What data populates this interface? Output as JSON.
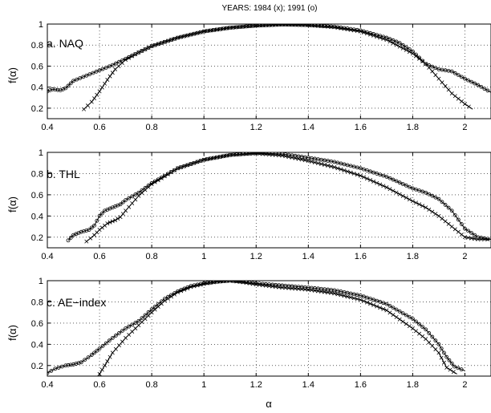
{
  "figure": {
    "title": "YEARS: 1984 (x); 1991 (o)",
    "xlabel": "α"
  },
  "chart_data": [
    {
      "type": "line",
      "panel_label": "a. NAQ",
      "ylabel": "f(α)",
      "xlim": [
        0.4,
        2.1
      ],
      "ylim": [
        0.1,
        1.0
      ],
      "x_ticks": [
        0.4,
        0.6,
        0.8,
        1,
        1.2,
        1.4,
        1.6,
        1.8,
        2
      ],
      "y_ticks": [
        0.2,
        0.4,
        0.6,
        0.8,
        1
      ],
      "grid": true,
      "series": [
        {
          "marker": "x",
          "points": [
            [
              0.54,
              0.19
            ],
            [
              0.57,
              0.26
            ],
            [
              0.6,
              0.36
            ],
            [
              0.63,
              0.47
            ],
            [
              0.66,
              0.57
            ],
            [
              0.7,
              0.66
            ],
            [
              0.75,
              0.73
            ],
            [
              0.8,
              0.79
            ],
            [
              0.9,
              0.87
            ],
            [
              1.0,
              0.93
            ],
            [
              1.1,
              0.965
            ],
            [
              1.2,
              0.985
            ],
            [
              1.3,
              0.995
            ],
            [
              1.4,
              0.99
            ],
            [
              1.5,
              0.97
            ],
            [
              1.6,
              0.93
            ],
            [
              1.7,
              0.85
            ],
            [
              1.8,
              0.72
            ],
            [
              1.85,
              0.62
            ],
            [
              1.9,
              0.48
            ],
            [
              1.95,
              0.34
            ],
            [
              2.0,
              0.24
            ],
            [
              2.03,
              0.19
            ]
          ]
        },
        {
          "marker": "o",
          "points": [
            [
              0.4,
              0.36
            ],
            [
              0.42,
              0.38
            ],
            [
              0.45,
              0.37
            ],
            [
              0.47,
              0.39
            ],
            [
              0.5,
              0.46
            ],
            [
              0.55,
              0.51
            ],
            [
              0.6,
              0.56
            ],
            [
              0.65,
              0.61
            ],
            [
              0.7,
              0.67
            ],
            [
              0.75,
              0.73
            ],
            [
              0.8,
              0.79
            ],
            [
              0.9,
              0.87
            ],
            [
              1.0,
              0.93
            ],
            [
              1.1,
              0.965
            ],
            [
              1.2,
              0.985
            ],
            [
              1.3,
              0.995
            ],
            [
              1.4,
              0.99
            ],
            [
              1.5,
              0.975
            ],
            [
              1.6,
              0.94
            ],
            [
              1.7,
              0.87
            ],
            [
              1.75,
              0.82
            ],
            [
              1.8,
              0.74
            ],
            [
              1.85,
              0.62
            ],
            [
              1.9,
              0.57
            ],
            [
              1.95,
              0.55
            ],
            [
              2.0,
              0.48
            ],
            [
              2.05,
              0.42
            ],
            [
              2.1,
              0.35
            ]
          ]
        }
      ]
    },
    {
      "type": "line",
      "panel_label": "b. THL",
      "ylabel": "f(α)",
      "xlim": [
        0.4,
        2.1
      ],
      "ylim": [
        0.1,
        1.0
      ],
      "x_ticks": [
        0.4,
        0.6,
        0.8,
        1,
        1.2,
        1.4,
        1.6,
        1.8,
        2
      ],
      "y_ticks": [
        0.2,
        0.4,
        0.6,
        0.8,
        1
      ],
      "grid": true,
      "series": [
        {
          "marker": "x",
          "points": [
            [
              0.55,
              0.16
            ],
            [
              0.58,
              0.22
            ],
            [
              0.6,
              0.27
            ],
            [
              0.63,
              0.33
            ],
            [
              0.66,
              0.36
            ],
            [
              0.68,
              0.39
            ],
            [
              0.7,
              0.45
            ],
            [
              0.75,
              0.59
            ],
            [
              0.8,
              0.7
            ],
            [
              0.9,
              0.85
            ],
            [
              1.0,
              0.93
            ],
            [
              1.1,
              0.975
            ],
            [
              1.2,
              0.99
            ],
            [
              1.3,
              0.97
            ],
            [
              1.4,
              0.92
            ],
            [
              1.5,
              0.86
            ],
            [
              1.6,
              0.78
            ],
            [
              1.7,
              0.67
            ],
            [
              1.8,
              0.54
            ],
            [
              1.85,
              0.48
            ],
            [
              1.9,
              0.4
            ],
            [
              1.95,
              0.3
            ],
            [
              2.0,
              0.2
            ],
            [
              2.05,
              0.18
            ],
            [
              2.1,
              0.18
            ]
          ]
        },
        {
          "marker": "o",
          "points": [
            [
              0.48,
              0.17
            ],
            [
              0.5,
              0.22
            ],
            [
              0.53,
              0.25
            ],
            [
              0.56,
              0.27
            ],
            [
              0.58,
              0.31
            ],
            [
              0.6,
              0.4
            ],
            [
              0.62,
              0.45
            ],
            [
              0.65,
              0.48
            ],
            [
              0.68,
              0.51
            ],
            [
              0.7,
              0.55
            ],
            [
              0.75,
              0.62
            ],
            [
              0.8,
              0.71
            ],
            [
              0.9,
              0.85
            ],
            [
              1.0,
              0.93
            ],
            [
              1.1,
              0.975
            ],
            [
              1.2,
              0.995
            ],
            [
              1.3,
              0.985
            ],
            [
              1.4,
              0.95
            ],
            [
              1.5,
              0.91
            ],
            [
              1.6,
              0.85
            ],
            [
              1.7,
              0.77
            ],
            [
              1.8,
              0.66
            ],
            [
              1.85,
              0.62
            ],
            [
              1.9,
              0.56
            ],
            [
              1.95,
              0.45
            ],
            [
              2.0,
              0.28
            ],
            [
              2.05,
              0.2
            ],
            [
              2.1,
              0.18
            ]
          ]
        }
      ]
    },
    {
      "type": "line",
      "panel_label": "c. AE−index",
      "ylabel": "f(α)",
      "xlim": [
        0.4,
        2.1
      ],
      "ylim": [
        0.1,
        1.0
      ],
      "x_ticks": [
        0.4,
        0.6,
        0.8,
        1,
        1.2,
        1.4,
        1.6,
        1.8,
        2
      ],
      "y_ticks": [
        0.2,
        0.4,
        0.6,
        0.8,
        1
      ],
      "grid": true,
      "series": [
        {
          "marker": "x",
          "points": [
            [
              0.6,
              0.12
            ],
            [
              0.62,
              0.2
            ],
            [
              0.65,
              0.32
            ],
            [
              0.7,
              0.46
            ],
            [
              0.75,
              0.58
            ],
            [
              0.8,
              0.7
            ],
            [
              0.85,
              0.81
            ],
            [
              0.9,
              0.89
            ],
            [
              0.95,
              0.94
            ],
            [
              1.0,
              0.97
            ],
            [
              1.05,
              0.99
            ],
            [
              1.1,
              1.0
            ],
            [
              1.15,
              0.985
            ],
            [
              1.2,
              0.965
            ],
            [
              1.3,
              0.935
            ],
            [
              1.4,
              0.915
            ],
            [
              1.5,
              0.88
            ],
            [
              1.6,
              0.82
            ],
            [
              1.7,
              0.72
            ],
            [
              1.8,
              0.55
            ],
            [
              1.85,
              0.45
            ],
            [
              1.9,
              0.32
            ],
            [
              1.93,
              0.18
            ],
            [
              1.97,
              0.12
            ]
          ]
        },
        {
          "marker": "o",
          "points": [
            [
              0.4,
              0.13
            ],
            [
              0.43,
              0.17
            ],
            [
              0.47,
              0.2
            ],
            [
              0.5,
              0.21
            ],
            [
              0.53,
              0.23
            ],
            [
              0.57,
              0.3
            ],
            [
              0.6,
              0.36
            ],
            [
              0.65,
              0.46
            ],
            [
              0.7,
              0.55
            ],
            [
              0.75,
              0.62
            ],
            [
              0.8,
              0.73
            ],
            [
              0.85,
              0.83
            ],
            [
              0.9,
              0.9
            ],
            [
              0.95,
              0.95
            ],
            [
              1.0,
              0.975
            ],
            [
              1.05,
              0.99
            ],
            [
              1.1,
              1.0
            ],
            [
              1.15,
              0.99
            ],
            [
              1.2,
              0.975
            ],
            [
              1.3,
              0.955
            ],
            [
              1.4,
              0.935
            ],
            [
              1.5,
              0.91
            ],
            [
              1.6,
              0.86
            ],
            [
              1.7,
              0.78
            ],
            [
              1.8,
              0.64
            ],
            [
              1.85,
              0.54
            ],
            [
              1.9,
              0.4
            ],
            [
              1.93,
              0.28
            ],
            [
              1.96,
              0.19
            ],
            [
              2.0,
              0.15
            ]
          ]
        }
      ]
    }
  ]
}
